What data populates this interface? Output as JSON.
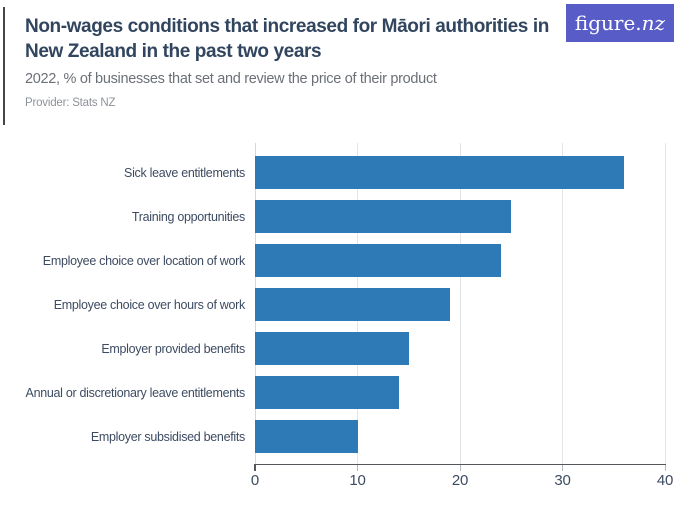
{
  "header": {
    "title_lines": [
      "Non-wages conditions that increased for Māori authorities in",
      "New Zealand in the past two years"
    ],
    "subtitle": "2022, % of businesses that set and review the price of their product",
    "provider": "Provider: Stats NZ"
  },
  "logo": {
    "text": "figure.nz",
    "text_regular": "figure.",
    "text_italic": "nz",
    "bg_color": "#585cc6",
    "text_color": "#ffffff"
  },
  "colors": {
    "bar": "#2d7ab6",
    "title": "#31455e",
    "subtitle": "#6b7077",
    "provider": "#8e939a",
    "axis_labels": "#3d4b62",
    "gridline": "#e3e4e6",
    "axis_line": "#53565a"
  },
  "chart_data": {
    "type": "bar",
    "orientation": "horizontal",
    "title": "Non-wages conditions that increased for Māori authorities in New Zealand in the past two years",
    "subtitle": "2022, % of businesses that set and review the price of their product",
    "provider": "Provider: Stats NZ",
    "categories": [
      "Sick leave entitlements",
      "Training opportunities",
      "Employee choice over location of work",
      "Employee choice over hours of work",
      "Employer provided benefits",
      "Annual or discretionary leave entitlements",
      "Employer subsidised benefits"
    ],
    "values": [
      36,
      25,
      24,
      19,
      15,
      14,
      10
    ],
    "unit": "%",
    "xlabel": "",
    "ylabel": "",
    "xlim": [
      0,
      40
    ],
    "xticks": [
      0,
      10,
      20,
      30,
      40
    ],
    "grid": true,
    "legend": false
  }
}
